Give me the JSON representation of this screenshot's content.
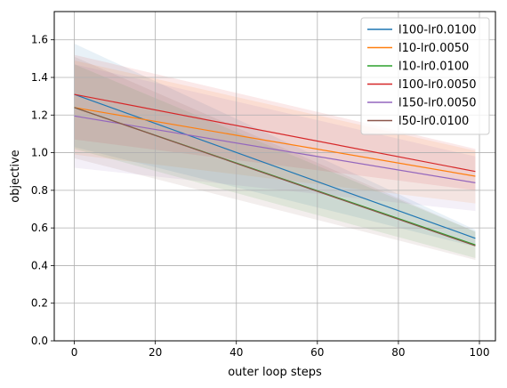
{
  "chart_data": {
    "type": "line",
    "title": "",
    "xlabel": "outer loop steps",
    "ylabel": "objective",
    "xlim": [
      -4.95,
      103.95
    ],
    "ylim": [
      0.0,
      1.75
    ],
    "xticks": [
      0,
      20,
      40,
      60,
      80,
      100
    ],
    "yticks": [
      0.0,
      0.2,
      0.4,
      0.6,
      0.8,
      1.0,
      1.2,
      1.4,
      1.6
    ],
    "xtick_labels": [
      "0",
      "20",
      "40",
      "60",
      "80",
      "100"
    ],
    "ytick_labels": [
      "0.0",
      "0.2",
      "0.4",
      "0.6",
      "0.8",
      "1.0",
      "1.2",
      "1.4",
      "1.6"
    ],
    "grid": true,
    "legend_position": "top-right",
    "series": [
      {
        "name": "l100-lr0.0100",
        "color": "#1f77b4",
        "x": [
          0,
          99
        ],
        "y": [
          1.31,
          0.545
        ],
        "band_lower": [
          1.03,
          0.5
        ],
        "band_upper": [
          1.58,
          0.59
        ]
      },
      {
        "name": "l10-lr0.0050",
        "color": "#ff7f0e",
        "x": [
          0,
          99
        ],
        "y": [
          1.24,
          0.875
        ],
        "band_lower": [
          0.99,
          0.73
        ],
        "band_upper": [
          1.49,
          1.01
        ]
      },
      {
        "name": "l10-lr0.0100",
        "color": "#2ca02c",
        "x": [
          0,
          99
        ],
        "y": [
          1.24,
          0.51
        ],
        "band_lower": [
          1.02,
          0.44
        ],
        "band_upper": [
          1.47,
          0.58
        ]
      },
      {
        "name": "l100-lr0.0050",
        "color": "#d62728",
        "x": [
          0,
          99
        ],
        "y": [
          1.31,
          0.9
        ],
        "band_lower": [
          1.07,
          0.8
        ],
        "band_upper": [
          1.52,
          1.02
        ]
      },
      {
        "name": "l150-lr0.0050",
        "color": "#9467bd",
        "x": [
          0,
          99
        ],
        "y": [
          1.195,
          0.84
        ],
        "band_lower": [
          0.92,
          0.69
        ],
        "band_upper": [
          1.47,
          0.98
        ]
      },
      {
        "name": "l50-lr0.0100",
        "color": "#8c564b",
        "x": [
          0,
          99
        ],
        "y": [
          1.24,
          0.505
        ],
        "band_lower": [
          0.97,
          0.43
        ],
        "band_upper": [
          1.51,
          0.58
        ]
      }
    ]
  }
}
